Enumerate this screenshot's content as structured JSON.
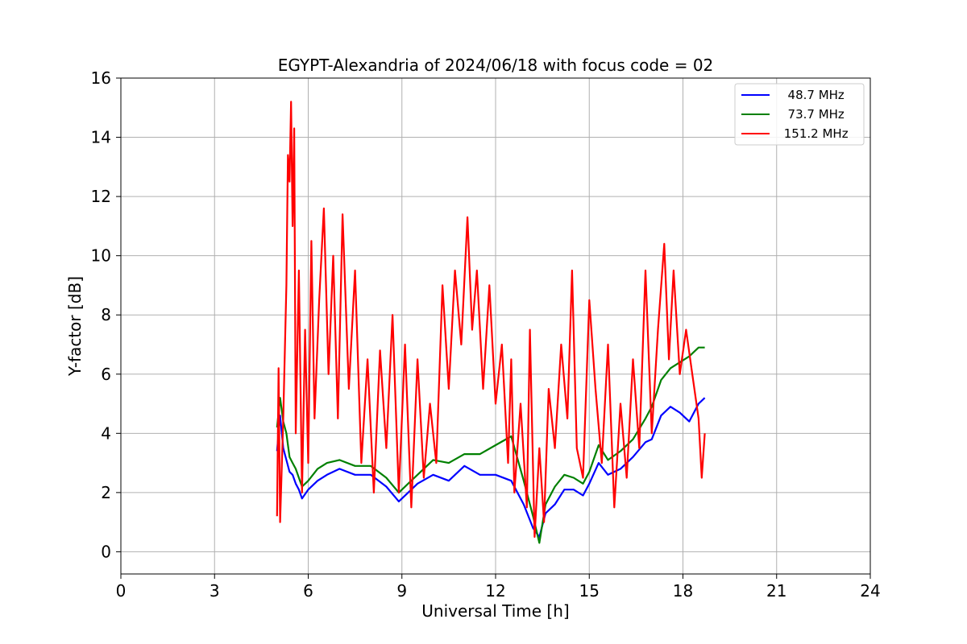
{
  "chart_data": {
    "type": "line",
    "title": "EGYPT-Alexandria of 2024/06/18 with focus code = 02",
    "xlabel": "Universal Time [h]",
    "ylabel": "Y-factor [dB]",
    "xlim": [
      0,
      24
    ],
    "ylim": [
      -0.75,
      16
    ],
    "xticks": [
      0,
      3,
      6,
      9,
      12,
      15,
      18,
      21,
      24
    ],
    "yticks": [
      0,
      2,
      4,
      6,
      8,
      10,
      12,
      14,
      16
    ],
    "grid": true,
    "legend_position": "top-right",
    "series": [
      {
        "name": "  48.7 MHz",
        "color": "#0000ff",
        "x": [
          5.0,
          5.1,
          5.2,
          5.3,
          5.4,
          5.5,
          5.6,
          5.7,
          5.8,
          6.0,
          6.3,
          6.6,
          7.0,
          7.5,
          8.0,
          8.5,
          8.9,
          9.2,
          9.5,
          10.0,
          10.5,
          11.0,
          11.5,
          12.0,
          12.5,
          12.9,
          13.2,
          13.4,
          13.6,
          13.9,
          14.2,
          14.5,
          14.8,
          15.0,
          15.3,
          15.6,
          16.0,
          16.4,
          16.8,
          17.0,
          17.3,
          17.6,
          17.9,
          18.2,
          18.5,
          18.7
        ],
        "values": [
          3.4,
          4.6,
          3.5,
          3.1,
          2.7,
          2.6,
          2.3,
          2.1,
          1.8,
          2.1,
          2.4,
          2.6,
          2.8,
          2.6,
          2.6,
          2.2,
          1.7,
          2.0,
          2.3,
          2.6,
          2.4,
          2.9,
          2.6,
          2.6,
          2.4,
          1.6,
          0.8,
          0.5,
          1.3,
          1.6,
          2.1,
          2.1,
          1.9,
          2.3,
          3.0,
          2.6,
          2.8,
          3.2,
          3.7,
          3.8,
          4.6,
          4.9,
          4.7,
          4.4,
          5.0,
          5.2
        ]
      },
      {
        "name": "  73.7 MHz",
        "color": "#008000",
        "x": [
          5.0,
          5.1,
          5.2,
          5.3,
          5.4,
          5.5,
          5.6,
          5.7,
          5.8,
          6.0,
          6.3,
          6.6,
          7.0,
          7.5,
          8.0,
          8.5,
          8.9,
          9.2,
          9.5,
          10.0,
          10.5,
          11.0,
          11.5,
          12.0,
          12.5,
          12.9,
          13.2,
          13.4,
          13.6,
          13.9,
          14.2,
          14.5,
          14.8,
          15.0,
          15.3,
          15.6,
          16.0,
          16.4,
          16.8,
          17.0,
          17.3,
          17.6,
          17.9,
          18.2,
          18.5,
          18.7
        ],
        "values": [
          4.2,
          5.2,
          4.4,
          4.0,
          3.2,
          3.0,
          2.8,
          2.5,
          2.2,
          2.4,
          2.8,
          3.0,
          3.1,
          2.9,
          2.9,
          2.5,
          2.0,
          2.3,
          2.6,
          3.1,
          3.0,
          3.3,
          3.3,
          3.6,
          3.9,
          2.4,
          1.2,
          0.3,
          1.6,
          2.2,
          2.6,
          2.5,
          2.3,
          2.7,
          3.6,
          3.1,
          3.4,
          3.8,
          4.5,
          4.9,
          5.8,
          6.2,
          6.4,
          6.6,
          6.9,
          6.9
        ]
      },
      {
        "name": " 151.2 MHz",
        "color": "#ff0000",
        "x": [
          5.0,
          5.05,
          5.1,
          5.2,
          5.3,
          5.35,
          5.4,
          5.45,
          5.5,
          5.55,
          5.6,
          5.7,
          5.8,
          5.9,
          6.0,
          6.1,
          6.2,
          6.35,
          6.5,
          6.65,
          6.8,
          6.95,
          7.1,
          7.3,
          7.5,
          7.7,
          7.9,
          8.1,
          8.3,
          8.5,
          8.7,
          8.9,
          9.1,
          9.3,
          9.5,
          9.7,
          9.9,
          10.1,
          10.3,
          10.5,
          10.7,
          10.9,
          11.1,
          11.25,
          11.4,
          11.6,
          11.8,
          12.0,
          12.2,
          12.4,
          12.5,
          12.6,
          12.8,
          13.0,
          13.1,
          13.25,
          13.4,
          13.55,
          13.7,
          13.9,
          14.1,
          14.3,
          14.45,
          14.6,
          14.8,
          15.0,
          15.2,
          15.4,
          15.6,
          15.8,
          16.0,
          16.2,
          16.4,
          16.6,
          16.8,
          17.0,
          17.2,
          17.4,
          17.55,
          17.7,
          17.9,
          18.1,
          18.3,
          18.5,
          18.6,
          18.7
        ],
        "values": [
          1.2,
          6.2,
          1.0,
          4.5,
          9.0,
          13.4,
          12.5,
          15.2,
          11.0,
          14.3,
          4.0,
          9.5,
          2.0,
          7.5,
          3.0,
          10.5,
          4.5,
          8.5,
          11.6,
          6.0,
          10.0,
          4.5,
          11.4,
          5.5,
          9.5,
          3.0,
          6.5,
          2.0,
          6.8,
          3.5,
          8.0,
          2.0,
          7.0,
          1.5,
          6.5,
          2.5,
          5.0,
          3.0,
          9.0,
          5.5,
          9.5,
          7.0,
          11.3,
          7.5,
          9.5,
          5.5,
          9.0,
          5.0,
          7.0,
          3.0,
          6.5,
          2.0,
          5.0,
          1.5,
          7.5,
          0.5,
          3.5,
          1.0,
          5.5,
          3.5,
          7.0,
          4.5,
          9.5,
          3.5,
          2.5,
          8.5,
          5.5,
          3.0,
          7.0,
          1.5,
          5.0,
          2.5,
          6.5,
          3.5,
          9.5,
          4.0,
          7.5,
          10.4,
          6.5,
          9.5,
          6.0,
          7.5,
          6.0,
          4.5,
          2.5,
          4.0
        ]
      }
    ]
  }
}
